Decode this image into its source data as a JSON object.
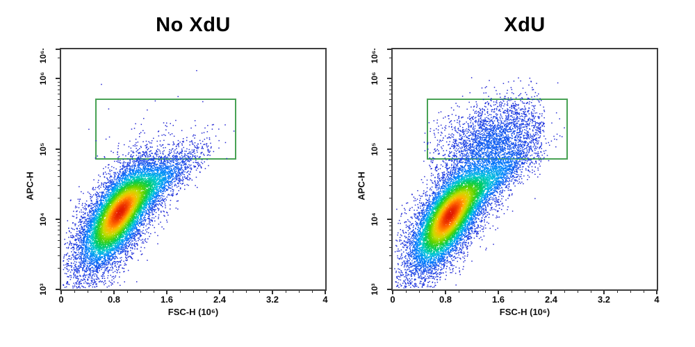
{
  "figure": {
    "background": "#ffffff",
    "plot_border_color": "#3d3d3d",
    "text_color": "#000000"
  },
  "chart_data": [
    {
      "type": "scatter",
      "flavor": "flow-cytometry-pseudocolor-density",
      "title": "No XdU",
      "xlabel": "FSC-H (10⁶)",
      "ylabel": "APC-H",
      "x_axis": {
        "min": 0,
        "max": 4,
        "minor_step": 0.2,
        "major_ticks": [
          0,
          0.8,
          1.6,
          2.4,
          3.2,
          4
        ],
        "tick_labels": [
          "0",
          "0.8",
          "1.6",
          "2.4",
          "3.2",
          "4"
        ]
      },
      "y_axis": {
        "scale": "log10",
        "min_exp": 3,
        "max_exp": 6.42,
        "major_ticks": [
          {
            "exp": 3,
            "label": "10³",
            "draw_tick": true
          },
          {
            "exp": 4,
            "label": "10⁴",
            "draw_tick": true
          },
          {
            "exp": 5,
            "label": "10⁵",
            "draw_tick": true
          },
          {
            "exp": 6,
            "label": "10⁶",
            "draw_tick": true
          },
          {
            "exp": 6.33,
            "label": "10⁶·",
            "draw_tick": false
          }
        ]
      },
      "gate": {
        "color": "#48a254",
        "x0": 0.52,
        "x1": 2.66,
        "y0_exp": 4.845,
        "y1_exp": 5.716
      },
      "populations": [
        {
          "name": "main-core",
          "n": 8200,
          "cx": 0.86,
          "cy": 4.06,
          "sx": 0.27,
          "sy": 0.36,
          "rho": 0.66,
          "seed": 101
        },
        {
          "name": "main-halo",
          "n": 2400,
          "cx": 0.85,
          "cy": 4.0,
          "sx": 0.43,
          "sy": 0.52,
          "rho": 0.72,
          "seed": 202
        },
        {
          "name": "diagonal-arm",
          "n": 2000,
          "cx": 1.4,
          "cy": 4.48,
          "sx": 0.36,
          "sy": 0.28,
          "rho": 0.82,
          "seed": 303
        }
      ],
      "extra_points": [
        [
          0.61,
          5.92
        ],
        [
          0.72,
          5.57
        ],
        [
          0.68,
          5.14
        ],
        [
          0.55,
          4.9
        ],
        [
          0.66,
          4.88
        ],
        [
          0.79,
          4.95
        ],
        [
          0.52,
          4.87
        ],
        [
          1.05,
          4.89
        ],
        [
          0.42,
          5.28
        ]
      ]
    },
    {
      "type": "scatter",
      "flavor": "flow-cytometry-pseudocolor-density",
      "title": "XdU",
      "xlabel": "FSC-H (10⁶)",
      "ylabel": "APC-H",
      "x_axis": {
        "min": 0,
        "max": 4,
        "minor_step": 0.2,
        "major_ticks": [
          0,
          0.8,
          1.6,
          2.4,
          3.2,
          4
        ],
        "tick_labels": [
          "0",
          "0.8",
          "1.6",
          "2.4",
          "3.2",
          "4"
        ]
      },
      "y_axis": {
        "scale": "log10",
        "min_exp": 3,
        "max_exp": 6.42,
        "major_ticks": [
          {
            "exp": 3,
            "label": "10³",
            "draw_tick": true
          },
          {
            "exp": 4,
            "label": "10⁴",
            "draw_tick": true
          },
          {
            "exp": 5,
            "label": "10⁵",
            "draw_tick": true
          },
          {
            "exp": 6,
            "label": "10⁶",
            "draw_tick": true
          },
          {
            "exp": 6.33,
            "label": "10⁶·",
            "draw_tick": false
          }
        ]
      },
      "gate": {
        "color": "#48a254",
        "x0": 0.52,
        "x1": 2.66,
        "y0_exp": 4.845,
        "y1_exp": 5.716
      },
      "populations": [
        {
          "name": "main-core",
          "n": 8200,
          "cx": 0.84,
          "cy": 4.02,
          "sx": 0.27,
          "sy": 0.36,
          "rho": 0.66,
          "seed": 108
        },
        {
          "name": "main-halo",
          "n": 2400,
          "cx": 0.85,
          "cy": 4.0,
          "sx": 0.43,
          "sy": 0.52,
          "rho": 0.72,
          "seed": 209
        },
        {
          "name": "diagonal-arm",
          "n": 2000,
          "cx": 1.42,
          "cy": 4.5,
          "sx": 0.36,
          "sy": 0.28,
          "rho": 0.82,
          "seed": 310
        },
        {
          "name": "xdu-positive",
          "n": 2500,
          "cx": 1.55,
          "cy": 5.15,
          "sx": 0.45,
          "sy": 0.3,
          "rho": 0.35,
          "seed": 404,
          "clip": {
            "xmin": 0.45,
            "xmax": 2.3,
            "ymin": 4.55,
            "ymax": 6.05
          }
        }
      ],
      "extra_points": []
    }
  ],
  "density_colormap": [
    {
      "v": 0.0,
      "color": "#2323d2"
    },
    {
      "v": 0.18,
      "color": "#1a48e8"
    },
    {
      "v": 0.32,
      "color": "#0082ff"
    },
    {
      "v": 0.44,
      "color": "#00c8d7"
    },
    {
      "v": 0.55,
      "color": "#00cd5a"
    },
    {
      "v": 0.66,
      "color": "#5ad200"
    },
    {
      "v": 0.76,
      "color": "#c8dc00"
    },
    {
      "v": 0.85,
      "color": "#ffb400"
    },
    {
      "v": 0.93,
      "color": "#ff6400"
    },
    {
      "v": 1.0,
      "color": "#e11900"
    }
  ]
}
